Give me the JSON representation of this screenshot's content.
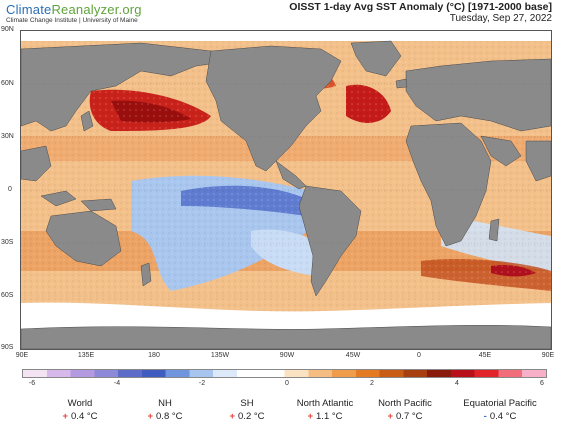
{
  "header": {
    "brand_a": "Climate",
    "brand_b": "Reanalyzer",
    "brand_c": ".org",
    "brand_sub": "Climate Change Institute | University of Maine",
    "title": "OISST 1-day Avg SST Anomaly (°C) [1971-2000 base]",
    "date": "Tuesday, Sep 27, 2022"
  },
  "axes": {
    "lat_labels": [
      "90N",
      "60N",
      "30N",
      "0",
      "30S",
      "60S",
      "90S"
    ],
    "lon_labels": [
      "90E",
      "135E",
      "180",
      "135W",
      "90W",
      "45W",
      "0",
      "45E",
      "90E"
    ]
  },
  "colorbar": {
    "ticks": [
      "-6",
      "-4",
      "-2",
      "0",
      "2",
      "4",
      "6"
    ],
    "colors": [
      "#f3e3f3",
      "#d7b8eb",
      "#b49ae0",
      "#8c8ad8",
      "#5c6cc8",
      "#3f5cc0",
      "#6f95de",
      "#a7c5ee",
      "#dbe9f8",
      "#ffffff",
      "#ffffff",
      "#fbe2c2",
      "#f6bd82",
      "#ef9c4b",
      "#e47a22",
      "#c95c15",
      "#a83f10",
      "#8a1b0a",
      "#b8101a",
      "#e0242a",
      "#f26d7a",
      "#f7b0c8"
    ]
  },
  "stats": [
    {
      "name": "World",
      "sign": "+",
      "value": "0.4 °C"
    },
    {
      "name": "NH",
      "sign": "+",
      "value": "0.8 °C"
    },
    {
      "name": "SH",
      "sign": "+",
      "value": "0.2 °C"
    },
    {
      "name": "North Atlantic",
      "sign": "+",
      "value": "1.1 °C"
    },
    {
      "name": "North Pacific",
      "sign": "+",
      "value": "0.7 °C"
    },
    {
      "name": "Equatorial Pacific",
      "sign": "-",
      "value": "0.4 °C"
    }
  ]
}
